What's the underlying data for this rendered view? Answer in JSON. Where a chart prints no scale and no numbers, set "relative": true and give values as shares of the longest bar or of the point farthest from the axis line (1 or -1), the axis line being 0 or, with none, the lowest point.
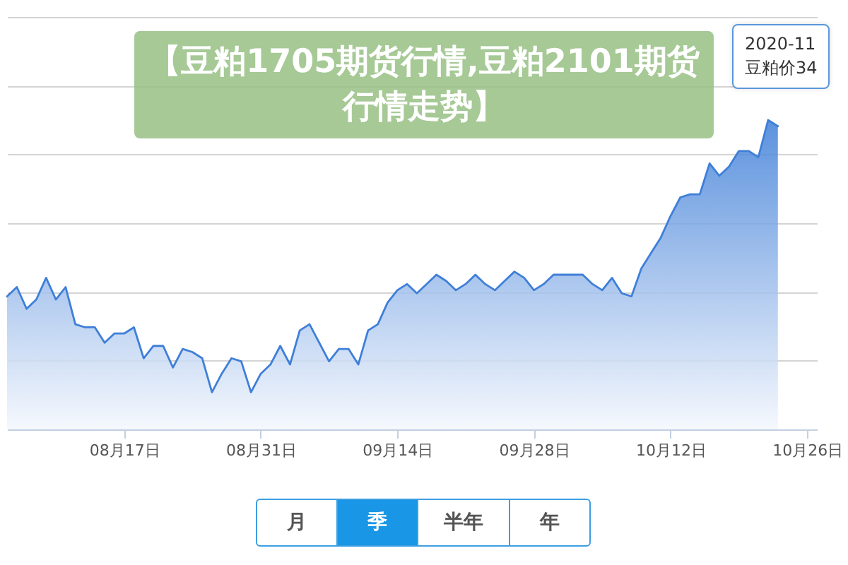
{
  "chart_data": {
    "type": "area",
    "title": "【豆粕1705期货行情,豆粕2101期货行情走势】",
    "relative": true,
    "grid": "y",
    "x": [
      "2020-08-05",
      "2020-08-06",
      "2020-08-07",
      "2020-08-08",
      "2020-08-09",
      "2020-08-10",
      "2020-08-11",
      "2020-08-12",
      "2020-08-13",
      "2020-08-14",
      "2020-08-15",
      "2020-08-16",
      "2020-08-17",
      "2020-08-18",
      "2020-08-19",
      "2020-08-20",
      "2020-08-21",
      "2020-08-22",
      "2020-08-23",
      "2020-08-24",
      "2020-08-25",
      "2020-08-26",
      "2020-08-27",
      "2020-08-28",
      "2020-08-29",
      "2020-08-30",
      "2020-08-31",
      "2020-09-01",
      "2020-09-02",
      "2020-09-03",
      "2020-09-04",
      "2020-09-05",
      "2020-09-06",
      "2020-09-07",
      "2020-09-08",
      "2020-09-09",
      "2020-09-10",
      "2020-09-11",
      "2020-09-12",
      "2020-09-13",
      "2020-09-14",
      "2020-09-15",
      "2020-09-16",
      "2020-09-17",
      "2020-09-18",
      "2020-09-19",
      "2020-09-20",
      "2020-09-21",
      "2020-09-22",
      "2020-09-23",
      "2020-09-24",
      "2020-09-25",
      "2020-09-26",
      "2020-09-27",
      "2020-09-28",
      "2020-09-29",
      "2020-09-30",
      "2020-10-01",
      "2020-10-02",
      "2020-10-03",
      "2020-10-04",
      "2020-10-05",
      "2020-10-06",
      "2020-10-07",
      "2020-10-08",
      "2020-10-09",
      "2020-10-10",
      "2020-10-11",
      "2020-10-12",
      "2020-10-13",
      "2020-10-14",
      "2020-10-15",
      "2020-10-16",
      "2020-10-17",
      "2020-10-18",
      "2020-10-19",
      "2020-10-20",
      "2020-10-21",
      "2020-10-22",
      "2020-10-23"
    ],
    "series": [
      {
        "color": "#3f7fd8",
        "values": [
          0.43,
          0.46,
          0.39,
          0.42,
          0.49,
          0.42,
          0.46,
          0.34,
          0.33,
          0.33,
          0.28,
          0.31,
          0.31,
          0.33,
          0.23,
          0.27,
          0.27,
          0.2,
          0.26,
          0.25,
          0.23,
          0.12,
          0.18,
          0.23,
          0.22,
          0.12,
          0.18,
          0.21,
          0.27,
          0.21,
          0.32,
          0.34,
          0.28,
          0.22,
          0.26,
          0.26,
          0.21,
          0.32,
          0.34,
          0.41,
          0.45,
          0.47,
          0.44,
          0.47,
          0.5,
          0.48,
          0.45,
          0.47,
          0.5,
          0.47,
          0.45,
          0.48,
          0.51,
          0.49,
          0.45,
          0.47,
          0.5,
          0.5,
          0.5,
          0.5,
          0.47,
          0.45,
          0.49,
          0.44,
          0.43,
          0.52,
          0.57,
          0.62,
          0.69,
          0.75,
          0.76,
          0.76,
          0.86,
          0.82,
          0.85,
          0.9,
          0.9,
          0.88,
          1.0,
          0.98
        ]
      }
    ],
    "xlim": [
      "2020-08-05",
      "2020-10-27"
    ],
    "xticks": [
      {
        "value": "2020-08-17",
        "label": "08月17日"
      },
      {
        "value": "2020-08-31",
        "label": "08月31日"
      },
      {
        "value": "2020-09-14",
        "label": "09月14日"
      },
      {
        "value": "2020-09-28",
        "label": "09月28日"
      },
      {
        "value": "2020-10-12",
        "label": "10月12日"
      },
      {
        "value": "2020-10-26",
        "label": "10月26日"
      }
    ],
    "annotations": [
      "2020-11",
      "豆粕价34",
      "月",
      "季",
      "半年",
      "年"
    ]
  }
}
